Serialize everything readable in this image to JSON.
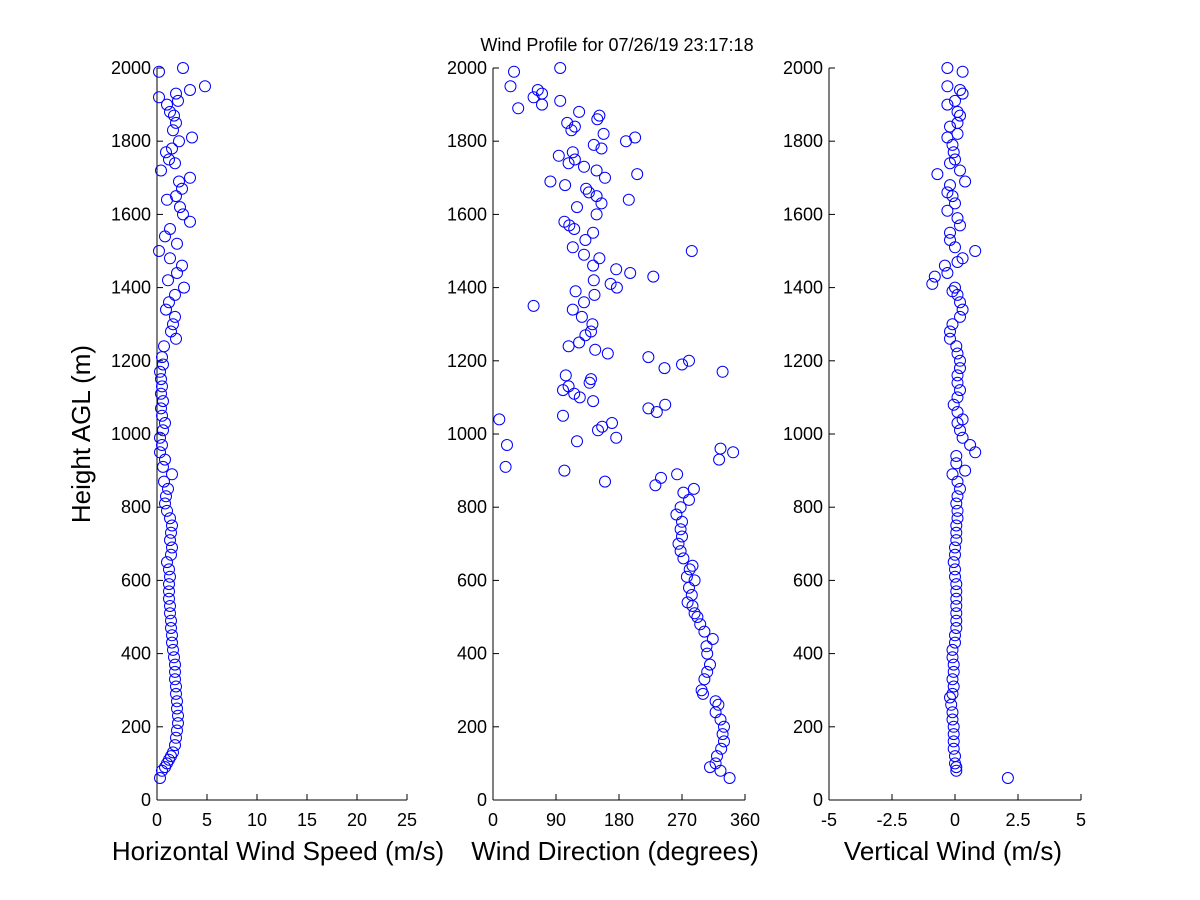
{
  "figure": {
    "title": "Wind Profile for  07/26/19 23:17:18",
    "marker_color": "#0000ff"
  },
  "chart_data": [
    {
      "type": "scatter",
      "xlabel": "Horizontal Wind Speed (m/s)",
      "ylabel": "Height AGL (m)",
      "xlim": [
        0,
        25
      ],
      "ylim": [
        0,
        2000
      ],
      "xticks": [
        "0",
        "5",
        "10",
        "15",
        "20",
        "25"
      ],
      "yticks": [
        "0",
        "200",
        "400",
        "600",
        "800",
        "1000",
        "1200",
        "1400",
        "1600",
        "1800",
        "2000"
      ],
      "grid": false,
      "points": [
        [
          0.3,
          60
        ],
        [
          0.5,
          80
        ],
        [
          0.8,
          90
        ],
        [
          1.0,
          100
        ],
        [
          1.2,
          110
        ],
        [
          1.4,
          120
        ],
        [
          1.6,
          130
        ],
        [
          1.8,
          150
        ],
        [
          1.9,
          170
        ],
        [
          2.0,
          190
        ],
        [
          2.1,
          210
        ],
        [
          2.1,
          230
        ],
        [
          2.0,
          250
        ],
        [
          2.0,
          270
        ],
        [
          1.9,
          290
        ],
        [
          1.9,
          310
        ],
        [
          1.8,
          330
        ],
        [
          1.8,
          350
        ],
        [
          1.8,
          370
        ],
        [
          1.7,
          390
        ],
        [
          1.6,
          410
        ],
        [
          1.5,
          430
        ],
        [
          1.5,
          450
        ],
        [
          1.4,
          470
        ],
        [
          1.4,
          490
        ],
        [
          1.3,
          510
        ],
        [
          1.3,
          530
        ],
        [
          1.2,
          550
        ],
        [
          1.2,
          570
        ],
        [
          1.2,
          590
        ],
        [
          1.3,
          610
        ],
        [
          1.2,
          630
        ],
        [
          1.0,
          650
        ],
        [
          1.4,
          670
        ],
        [
          1.5,
          690
        ],
        [
          1.3,
          710
        ],
        [
          1.4,
          730
        ],
        [
          1.5,
          750
        ],
        [
          1.3,
          770
        ],
        [
          1.0,
          790
        ],
        [
          0.8,
          810
        ],
        [
          0.9,
          830
        ],
        [
          1.1,
          850
        ],
        [
          0.7,
          870
        ],
        [
          1.5,
          890
        ],
        [
          0.6,
          910
        ],
        [
          0.8,
          930
        ],
        [
          0.3,
          950
        ],
        [
          0.5,
          970
        ],
        [
          0.3,
          990
        ],
        [
          0.6,
          1010
        ],
        [
          0.8,
          1030
        ],
        [
          0.5,
          1050
        ],
        [
          0.4,
          1070
        ],
        [
          0.6,
          1090
        ],
        [
          0.4,
          1110
        ],
        [
          0.5,
          1130
        ],
        [
          0.4,
          1150
        ],
        [
          0.3,
          1170
        ],
        [
          0.6,
          1190
        ],
        [
          0.5,
          1210
        ],
        [
          0.7,
          1240
        ],
        [
          1.9,
          1260
        ],
        [
          1.4,
          1280
        ],
        [
          1.6,
          1300
        ],
        [
          1.8,
          1320
        ],
        [
          0.9,
          1340
        ],
        [
          1.2,
          1360
        ],
        [
          1.8,
          1380
        ],
        [
          2.7,
          1400
        ],
        [
          1.1,
          1420
        ],
        [
          2.0,
          1440
        ],
        [
          2.5,
          1460
        ],
        [
          1.3,
          1480
        ],
        [
          0.2,
          1500
        ],
        [
          2.0,
          1520
        ],
        [
          0.8,
          1540
        ],
        [
          1.3,
          1560
        ],
        [
          3.3,
          1580
        ],
        [
          2.6,
          1600
        ],
        [
          2.3,
          1620
        ],
        [
          1.9,
          1650
        ],
        [
          1.0,
          1640
        ],
        [
          2.5,
          1670
        ],
        [
          2.2,
          1690
        ],
        [
          3.3,
          1700
        ],
        [
          0.4,
          1720
        ],
        [
          1.8,
          1740
        ],
        [
          1.2,
          1750
        ],
        [
          0.9,
          1770
        ],
        [
          1.5,
          1780
        ],
        [
          2.2,
          1800
        ],
        [
          3.5,
          1810
        ],
        [
          1.6,
          1830
        ],
        [
          1.9,
          1850
        ],
        [
          1.7,
          1870
        ],
        [
          1.3,
          1880
        ],
        [
          1.0,
          1900
        ],
        [
          2.1,
          1910
        ],
        [
          1.9,
          1930
        ],
        [
          3.3,
          1940
        ],
        [
          4.8,
          1950
        ],
        [
          2.6,
          2000
        ],
        [
          0.2,
          1990
        ],
        [
          0.2,
          1920
        ]
      ]
    },
    {
      "type": "scatter",
      "xlabel": "Wind Direction (degrees)",
      "ylabel": "",
      "xlim": [
        0,
        360
      ],
      "ylim": [
        0,
        2000
      ],
      "xticks": [
        "0",
        "90",
        "180",
        "270",
        "360"
      ],
      "yticks": [
        "0",
        "200",
        "400",
        "600",
        "800",
        "1000",
        "1200",
        "1400",
        "1600",
        "1800",
        "2000"
      ],
      "grid": false,
      "points": [
        [
          338,
          60
        ],
        [
          325,
          80
        ],
        [
          310,
          90
        ],
        [
          318,
          100
        ],
        [
          320,
          120
        ],
        [
          326,
          140
        ],
        [
          330,
          160
        ],
        [
          328,
          180
        ],
        [
          330,
          200
        ],
        [
          325,
          220
        ],
        [
          318,
          240
        ],
        [
          322,
          260
        ],
        [
          318,
          270
        ],
        [
          300,
          290
        ],
        [
          298,
          300
        ],
        [
          302,
          330
        ],
        [
          306,
          350
        ],
        [
          310,
          370
        ],
        [
          306,
          400
        ],
        [
          305,
          420
        ],
        [
          314,
          440
        ],
        [
          302,
          460
        ],
        [
          296,
          480
        ],
        [
          292,
          500
        ],
        [
          288,
          510
        ],
        [
          285,
          530
        ],
        [
          278,
          540
        ],
        [
          284,
          560
        ],
        [
          280,
          580
        ],
        [
          288,
          600
        ],
        [
          277,
          610
        ],
        [
          281,
          630
        ],
        [
          285,
          640
        ],
        [
          272,
          660
        ],
        [
          268,
          680
        ],
        [
          265,
          700
        ],
        [
          270,
          720
        ],
        [
          268,
          740
        ],
        [
          270,
          760
        ],
        [
          262,
          780
        ],
        [
          268,
          800
        ],
        [
          280,
          820
        ],
        [
          272,
          840
        ],
        [
          287,
          850
        ],
        [
          232,
          860
        ],
        [
          240,
          880
        ],
        [
          263,
          890
        ],
        [
          18,
          910
        ],
        [
          102,
          900
        ],
        [
          160,
          870
        ],
        [
          323,
          930
        ],
        [
          343,
          950
        ],
        [
          325,
          960
        ],
        [
          20,
          970
        ],
        [
          176,
          990
        ],
        [
          120,
          980
        ],
        [
          150,
          1010
        ],
        [
          156,
          1020
        ],
        [
          170,
          1030
        ],
        [
          9,
          1040
        ],
        [
          100,
          1050
        ],
        [
          234,
          1060
        ],
        [
          222,
          1070
        ],
        [
          246,
          1080
        ],
        [
          143,
          1090
        ],
        [
          124,
          1100
        ],
        [
          116,
          1110
        ],
        [
          100,
          1120
        ],
        [
          108,
          1130
        ],
        [
          138,
          1140
        ],
        [
          140,
          1150
        ],
        [
          104,
          1160
        ],
        [
          328,
          1170
        ],
        [
          245,
          1180
        ],
        [
          270,
          1190
        ],
        [
          280,
          1200
        ],
        [
          222,
          1210
        ],
        [
          164,
          1220
        ],
        [
          146,
          1230
        ],
        [
          108,
          1240
        ],
        [
          123,
          1250
        ],
        [
          132,
          1270
        ],
        [
          140,
          1280
        ],
        [
          142,
          1300
        ],
        [
          127,
          1320
        ],
        [
          114,
          1340
        ],
        [
          58,
          1350
        ],
        [
          130,
          1360
        ],
        [
          145,
          1380
        ],
        [
          118,
          1390
        ],
        [
          177,
          1400
        ],
        [
          168,
          1410
        ],
        [
          144,
          1420
        ],
        [
          229,
          1430
        ],
        [
          196,
          1440
        ],
        [
          176,
          1450
        ],
        [
          143,
          1460
        ],
        [
          152,
          1480
        ],
        [
          130,
          1490
        ],
        [
          284,
          1500
        ],
        [
          114,
          1510
        ],
        [
          132,
          1530
        ],
        [
          143,
          1550
        ],
        [
          116,
          1560
        ],
        [
          109,
          1570
        ],
        [
          102,
          1580
        ],
        [
          148,
          1600
        ],
        [
          120,
          1620
        ],
        [
          155,
          1630
        ],
        [
          148,
          1650
        ],
        [
          137,
          1660
        ],
        [
          194,
          1640
        ],
        [
          133,
          1670
        ],
        [
          103,
          1680
        ],
        [
          82,
          1690
        ],
        [
          160,
          1700
        ],
        [
          206,
          1710
        ],
        [
          148,
          1720
        ],
        [
          130,
          1730
        ],
        [
          108,
          1740
        ],
        [
          117,
          1750
        ],
        [
          94,
          1760
        ],
        [
          114,
          1770
        ],
        [
          155,
          1780
        ],
        [
          144,
          1790
        ],
        [
          190,
          1800
        ],
        [
          203,
          1810
        ],
        [
          158,
          1820
        ],
        [
          112,
          1830
        ],
        [
          117,
          1840
        ],
        [
          106,
          1850
        ],
        [
          149,
          1860
        ],
        [
          152,
          1870
        ],
        [
          123,
          1880
        ],
        [
          36,
          1890
        ],
        [
          70,
          1900
        ],
        [
          96,
          1910
        ],
        [
          58,
          1920
        ],
        [
          70,
          1930
        ],
        [
          64,
          1940
        ],
        [
          25,
          1950
        ],
        [
          30,
          1990
        ],
        [
          96,
          2000
        ]
      ]
    },
    {
      "type": "scatter",
      "xlabel": "Vertical Wind (m/s)",
      "ylabel": "",
      "xlim": [
        -5,
        5
      ],
      "ylim": [
        0,
        2000
      ],
      "xticks": [
        "-5",
        "-2.5",
        "0",
        "2.5",
        "5"
      ],
      "yticks": [
        "0",
        "200",
        "400",
        "600",
        "800",
        "1000",
        "1200",
        "1400",
        "1600",
        "1800",
        "2000"
      ],
      "grid": false,
      "points": [
        [
          2.1,
          60
        ],
        [
          0.05,
          80
        ],
        [
          0.05,
          90
        ],
        [
          0.0,
          100
        ],
        [
          0.0,
          120
        ],
        [
          -0.05,
          140
        ],
        [
          -0.05,
          160
        ],
        [
          -0.05,
          180
        ],
        [
          -0.05,
          200
        ],
        [
          -0.1,
          220
        ],
        [
          -0.1,
          240
        ],
        [
          -0.15,
          260
        ],
        [
          -0.2,
          280
        ],
        [
          -0.1,
          290
        ],
        [
          -0.05,
          310
        ],
        [
          -0.1,
          330
        ],
        [
          -0.05,
          350
        ],
        [
          -0.05,
          370
        ],
        [
          -0.1,
          390
        ],
        [
          -0.1,
          410
        ],
        [
          0.0,
          430
        ],
        [
          0.0,
          450
        ],
        [
          0.05,
          470
        ],
        [
          0.05,
          490
        ],
        [
          0.05,
          510
        ],
        [
          0.05,
          530
        ],
        [
          0.05,
          550
        ],
        [
          0.05,
          570
        ],
        [
          0.05,
          590
        ],
        [
          0.0,
          610
        ],
        [
          0.0,
          630
        ],
        [
          -0.05,
          650
        ],
        [
          0.0,
          670
        ],
        [
          0.0,
          690
        ],
        [
          0.05,
          710
        ],
        [
          0.05,
          730
        ],
        [
          0.05,
          750
        ],
        [
          0.1,
          770
        ],
        [
          0.1,
          790
        ],
        [
          0.05,
          810
        ],
        [
          0.1,
          830
        ],
        [
          0.2,
          850
        ],
        [
          0.1,
          870
        ],
        [
          -0.1,
          890
        ],
        [
          0.4,
          900
        ],
        [
          0.05,
          920
        ],
        [
          0.05,
          940
        ],
        [
          0.8,
          950
        ],
        [
          0.6,
          970
        ],
        [
          0.3,
          990
        ],
        [
          0.2,
          1010
        ],
        [
          0.1,
          1030
        ],
        [
          0.3,
          1040
        ],
        [
          0.1,
          1060
        ],
        [
          -0.05,
          1080
        ],
        [
          0.1,
          1100
        ],
        [
          0.2,
          1120
        ],
        [
          0.1,
          1140
        ],
        [
          0.1,
          1160
        ],
        [
          0.2,
          1180
        ],
        [
          0.2,
          1200
        ],
        [
          0.1,
          1220
        ],
        [
          0.05,
          1240
        ],
        [
          -0.2,
          1260
        ],
        [
          -0.2,
          1280
        ],
        [
          -0.1,
          1300
        ],
        [
          0.2,
          1320
        ],
        [
          0.3,
          1340
        ],
        [
          0.2,
          1360
        ],
        [
          0.1,
          1380
        ],
        [
          -0.1,
          1390
        ],
        [
          0.0,
          1400
        ],
        [
          -0.9,
          1410
        ],
        [
          -0.8,
          1430
        ],
        [
          -0.3,
          1440
        ],
        [
          -0.4,
          1460
        ],
        [
          0.1,
          1470
        ],
        [
          0.3,
          1480
        ],
        [
          0.8,
          1500
        ],
        [
          0.0,
          1510
        ],
        [
          -0.2,
          1530
        ],
        [
          -0.2,
          1550
        ],
        [
          0.2,
          1570
        ],
        [
          0.1,
          1590
        ],
        [
          -0.3,
          1610
        ],
        [
          0.0,
          1630
        ],
        [
          -0.1,
          1650
        ],
        [
          -0.3,
          1660
        ],
        [
          -0.2,
          1680
        ],
        [
          0.4,
          1690
        ],
        [
          -0.7,
          1710
        ],
        [
          0.2,
          1720
        ],
        [
          -0.2,
          1740
        ],
        [
          0.0,
          1750
        ],
        [
          -0.05,
          1770
        ],
        [
          -0.1,
          1790
        ],
        [
          -0.3,
          1810
        ],
        [
          0.1,
          1820
        ],
        [
          -0.2,
          1840
        ],
        [
          0.1,
          1850
        ],
        [
          0.2,
          1870
        ],
        [
          0.1,
          1880
        ],
        [
          -0.3,
          1900
        ],
        [
          0.0,
          1910
        ],
        [
          0.3,
          1930
        ],
        [
          0.2,
          1940
        ],
        [
          -0.3,
          1950
        ],
        [
          0.3,
          1990
        ],
        [
          -0.3,
          2000
        ]
      ]
    }
  ]
}
